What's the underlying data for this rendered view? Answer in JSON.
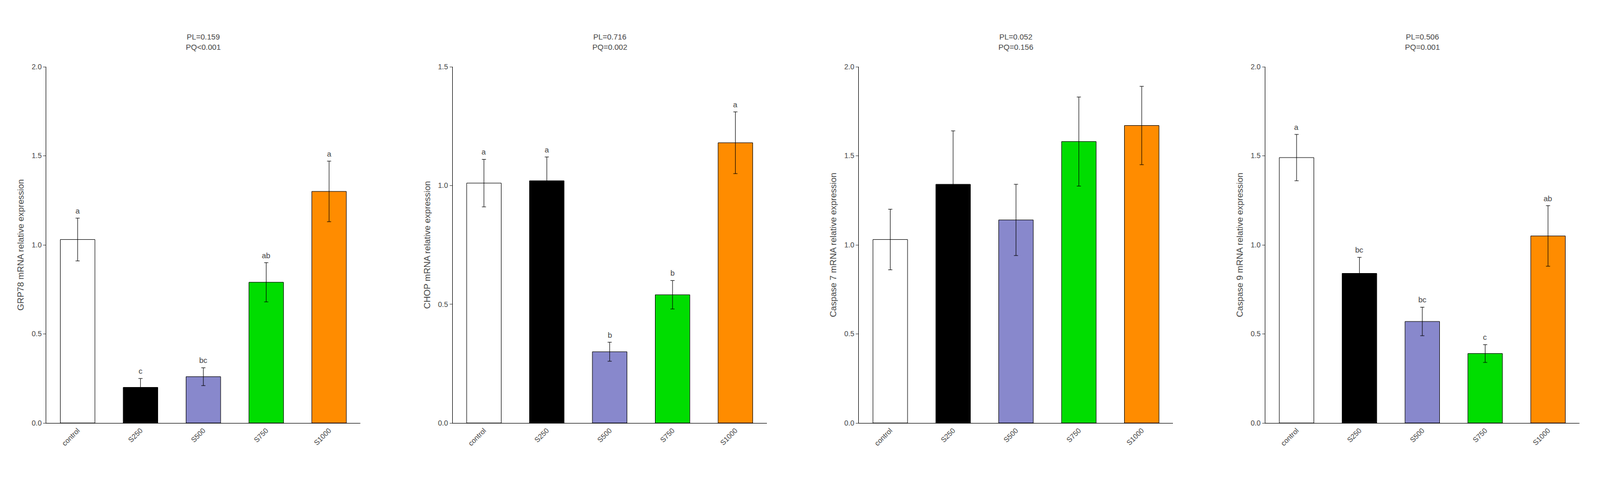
{
  "chart_data": [
    {
      "type": "bar",
      "ylabel": "GRP78 mRNA relative expression",
      "annotation": "PL=0.159\nPQ<0.001",
      "categories": [
        "control",
        "S250",
        "S500",
        "S750",
        "S1000"
      ],
      "values": [
        1.03,
        0.2,
        0.26,
        0.79,
        1.3
      ],
      "errors": [
        0.12,
        0.05,
        0.05,
        0.11,
        0.17
      ],
      "colors": [
        "#ffffff",
        "#000000",
        "#8888cc",
        "#00dd00",
        "#ff8c00"
      ],
      "letters": [
        "a",
        "c",
        "bc",
        "ab",
        "a"
      ],
      "ylim": [
        0,
        2.0
      ],
      "yticks": [
        {
          "value": 0,
          "label": "0.0"
        },
        0.5,
        {
          "value": 1.0,
          "label": "1.0"
        },
        1.5,
        {
          "value": 2.0,
          "label": "2.0"
        }
      ],
      "grid": false
    },
    {
      "type": "bar",
      "ylabel": "CHOP mRNA relative expression",
      "annotation": "PL=0.716\nPQ=0.002",
      "categories": [
        "control",
        "S250",
        "S500",
        "S750",
        "S1000"
      ],
      "values": [
        1.01,
        1.02,
        0.3,
        0.54,
        1.18
      ],
      "errors": [
        0.1,
        0.1,
        0.04,
        0.06,
        0.13
      ],
      "colors": [
        "#ffffff",
        "#000000",
        "#8888cc",
        "#00dd00",
        "#ff8c00"
      ],
      "letters": [
        "a",
        "a",
        "b",
        "b",
        "a"
      ],
      "ylim": [
        0,
        1.5
      ],
      "yticks": [
        {
          "value": 0,
          "label": "0.0"
        },
        0.5,
        {
          "value": 1.0,
          "label": "1.0"
        },
        1.5
      ],
      "grid": false
    },
    {
      "type": "bar",
      "ylabel": "Caspase 7 mRNA relative expression",
      "annotation": "PL=0.052\nPQ=0.156",
      "categories": [
        "control",
        "S250",
        "S500",
        "S750",
        "S1000"
      ],
      "values": [
        1.03,
        1.34,
        1.14,
        1.58,
        1.67
      ],
      "errors": [
        0.17,
        0.3,
        0.2,
        0.25,
        0.22
      ],
      "colors": [
        "#ffffff",
        "#000000",
        "#8888cc",
        "#00dd00",
        "#ff8c00"
      ],
      "ylim": [
        0,
        2.0
      ],
      "yticks": [
        {
          "value": 0,
          "label": "0.0"
        },
        0.5,
        {
          "value": 1.0,
          "label": "1.0"
        },
        1.5,
        {
          "value": 2.0,
          "label": "2.0"
        }
      ],
      "grid": false
    },
    {
      "type": "bar",
      "ylabel": "Caspase 9 mRNA relative expression",
      "annotation": "PL=0.506\nPQ=0.001",
      "categories": [
        "control",
        "S250",
        "S500",
        "S750",
        "S1000"
      ],
      "values": [
        1.49,
        0.84,
        0.57,
        0.39,
        1.05
      ],
      "errors": [
        0.13,
        0.09,
        0.08,
        0.05,
        0.17
      ],
      "colors": [
        "#ffffff",
        "#000000",
        "#8888cc",
        "#00dd00",
        "#ff8c00"
      ],
      "letters": [
        "a",
        "bc",
        "bc",
        "c",
        "ab"
      ],
      "ylim": [
        0,
        2.0
      ],
      "yticks": [
        {
          "value": 0,
          "label": "0.0"
        },
        0.5,
        {
          "value": 1.0,
          "label": "1.0"
        },
        1.5,
        {
          "value": 2.0,
          "label": "2.0"
        }
      ],
      "grid": false
    }
  ]
}
